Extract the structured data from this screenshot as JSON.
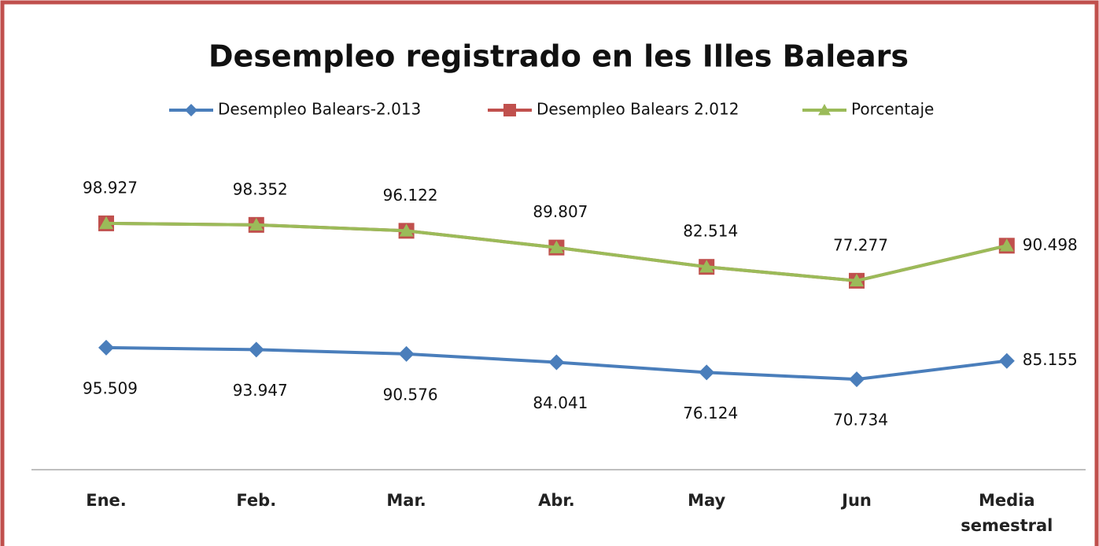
{
  "chart_data": {
    "type": "line",
    "title": "Desempleo registrado en les Illes Balears",
    "categories": [
      "Ene.",
      "Feb.",
      "Mar.",
      "Abr.",
      "May",
      "Jun",
      "Media semestral"
    ],
    "series": [
      {
        "name": "Desempleo Balears-2.013",
        "color": "#4a7ebb",
        "marker": "diamond",
        "values": [
          95509,
          93947,
          90576,
          84041,
          76124,
          70734,
          85155
        ],
        "value_labels": [
          "95.509",
          "93.947",
          "90.576",
          "84.041",
          "76.124",
          "70.734",
          "85.155"
        ]
      },
      {
        "name": "Desempleo Balears 2.012",
        "color": "#c0504d",
        "marker": "square",
        "axis": "y2",
        "values": [
          98927,
          98352,
          96122,
          89807,
          82514,
          77277,
          90498
        ],
        "value_labels": [
          "98.927",
          "98.352",
          "96.122",
          "89.807",
          "82.514",
          "77.277",
          "90.498"
        ]
      },
      {
        "name": "Porcentaje",
        "color": "#9bbb59",
        "marker": "triangle",
        "axis": "y2",
        "values": [
          98927,
          98352,
          96122,
          89807,
          82514,
          77277,
          90498
        ]
      }
    ],
    "ylim": [
      0,
      250000
    ],
    "y2lim": [
      6000,
      126500
    ],
    "legend": "top"
  }
}
